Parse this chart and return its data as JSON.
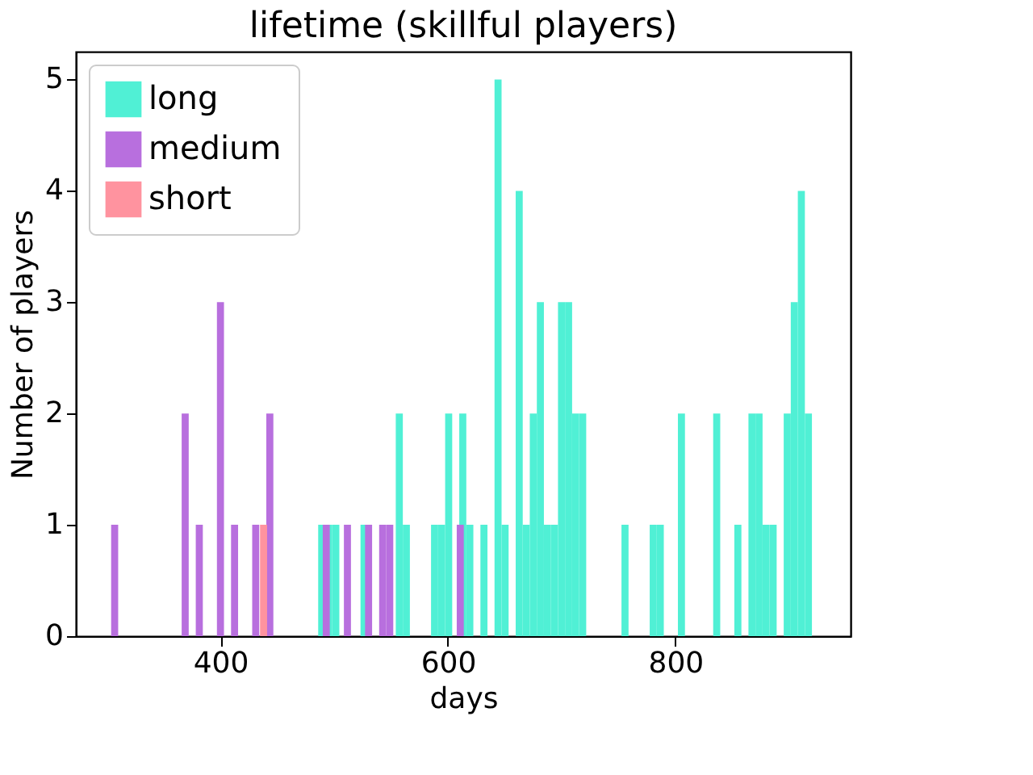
{
  "chart_data": {
    "type": "bar",
    "title": "lifetime (skillful players)",
    "xlabel": "days",
    "ylabel": "Number of players",
    "xlim": [
      273,
      954
    ],
    "xticks": [
      400,
      600,
      800
    ],
    "ylim": [
      0,
      5.25
    ],
    "yticks": [
      0,
      1,
      2,
      3,
      4,
      5
    ],
    "grid": false,
    "legend": "top left",
    "series": [
      {
        "name": "long",
        "color": "#50f0d5",
        "x": [
          489.1,
          495.3,
          501.5,
          526.3,
          557.3,
          563.5,
          588.3,
          594.5,
          600.7,
          613.1,
          619.3,
          631.7,
          644.1,
          650.3,
          662.7,
          668.9,
          675.1,
          681.3,
          687.5,
          693.7,
          699.9,
          706.1,
          712.3,
          718.5,
          755.7,
          780.5,
          786.7,
          805.3,
          836.3,
          854.9,
          867.3,
          873.5,
          879.7,
          885.9,
          898.3,
          904.5,
          910.7,
          916.9
        ],
        "values": [
          1,
          1,
          1,
          1,
          2,
          1,
          1,
          1,
          2,
          2,
          1,
          1,
          5,
          1,
          4,
          1,
          2,
          3,
          1,
          1,
          3,
          3,
          2,
          2,
          1,
          1,
          1,
          2,
          2,
          1,
          2,
          2,
          1,
          1,
          2,
          3,
          4,
          2
        ]
      },
      {
        "name": "medium",
        "color": "#b86fde",
        "x": [
          307.1,
          369.1,
          381.5,
          400.1,
          412.5,
          431.1,
          443.5,
          493.1,
          511.7,
          530.3,
          542.7,
          548.9,
          610.9
        ],
        "values": [
          1,
          2,
          1,
          3,
          1,
          1,
          2,
          1,
          1,
          1,
          1,
          1,
          1
        ]
      },
      {
        "name": "short",
        "color": "#ff939f",
        "x": [
          438
        ],
        "values": [
          1
        ]
      }
    ]
  }
}
